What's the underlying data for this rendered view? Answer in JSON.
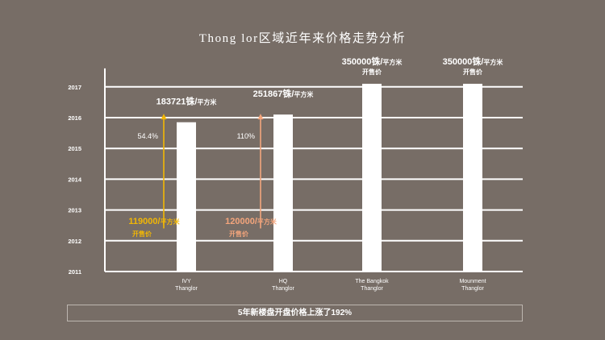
{
  "title": "Thong lor区域近年来价格走势分析",
  "footer": "5年新楼盘开盘价格上涨了192%",
  "colors": {
    "background": "#776D66",
    "bar": "#FFFFFF",
    "grid": "#FFFFFF",
    "arrow_ivy": "#F2B705",
    "arrow_hq": "#F4A57C"
  },
  "chart_data": {
    "type": "bar",
    "title": "Thong lor区域近年来价格走势分析",
    "y_axis_ticks": [
      "2011",
      "2012",
      "2013",
      "2014",
      "2015",
      "2016",
      "2017"
    ],
    "ylim": [
      2011,
      2017.6
    ],
    "grid": true,
    "categories": [
      {
        "lines": [
          "IVY",
          "Thanglor"
        ]
      },
      {
        "lines": [
          "HQ",
          "Thanglor"
        ]
      },
      {
        "lines": [
          "The Bangkok",
          "Thanglor"
        ]
      },
      {
        "lines": [
          "Mounment",
          "Thanglor"
        ]
      }
    ],
    "values": [
      2015.85,
      2016.1,
      2017.1,
      2017.1
    ],
    "top_labels": [
      {
        "main": "183721铢/",
        "unit": "平方米",
        "sub": ""
      },
      {
        "main": "251867铢/",
        "unit": "平方米",
        "sub": ""
      },
      {
        "main": "350000铢/",
        "unit": "平方米",
        "sub": "开售价"
      },
      {
        "main": "350000铢/",
        "unit": "平方米",
        "sub": "开售价"
      }
    ],
    "annotations": [
      {
        "bar_index": 0,
        "start_price_main": "119000/",
        "start_price_unit": "平方米",
        "start_price_sub": "开售价",
        "growth": "54.4%",
        "arrow_from": 2012.4,
        "arrow_to": 2016.1,
        "color": "#F2B705"
      },
      {
        "bar_index": 1,
        "start_price_main": "120000/",
        "start_price_unit": "平方米",
        "start_price_sub": "开售价",
        "growth": "110%",
        "arrow_from": 2012.4,
        "arrow_to": 2016.1,
        "color": "#F4A57C"
      }
    ]
  }
}
